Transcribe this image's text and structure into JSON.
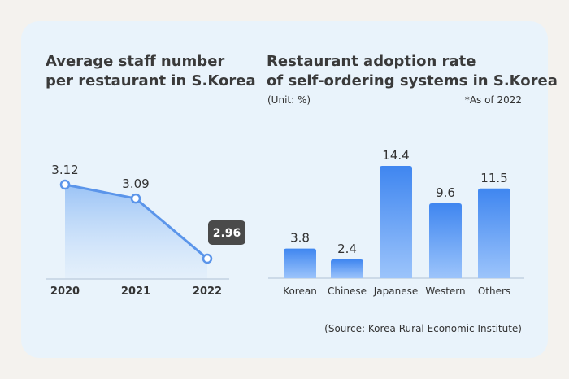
{
  "colors": {
    "card_bg": "#e9f3fb",
    "page_bg": "#f4f2ee",
    "line": "#5b95ea",
    "bar_top": "#3f86f0",
    "bar_bottom": "#9cc4fb",
    "highlight_bg": "#4a4a4a"
  },
  "left_panel": {
    "title_line1": "Average staff number",
    "title_line2": "per restaurant in S.Korea"
  },
  "right_panel": {
    "title_line1": "Restaurant adoption rate",
    "title_line2": "of self-ordering systems in S.Korea",
    "unit": "(Unit: %)",
    "as_of": "*As of 2022",
    "source": "(Source: Korea Rural Economic Institute)"
  },
  "chart_data": [
    {
      "type": "area",
      "title": "Average staff number per restaurant in S.Korea",
      "x": [
        "2020",
        "2021",
        "2022"
      ],
      "values": [
        3.12,
        3.09,
        2.96
      ],
      "labels": [
        "3.12",
        "3.09",
        "2.96"
      ],
      "highlighted_index": 2,
      "grid": false
    },
    {
      "type": "bar",
      "title": "Restaurant adoption rate of self-ordering systems in S.Korea",
      "categories": [
        "Korean",
        "Chinese",
        "Japanese",
        "Western",
        "Others"
      ],
      "values": [
        3.8,
        2.4,
        14.4,
        9.6,
        11.5
      ],
      "labels": [
        "3.8",
        "2.4",
        "14.4",
        "9.6",
        "11.5"
      ],
      "ylim": [
        0,
        14.4
      ],
      "grid": false
    }
  ]
}
